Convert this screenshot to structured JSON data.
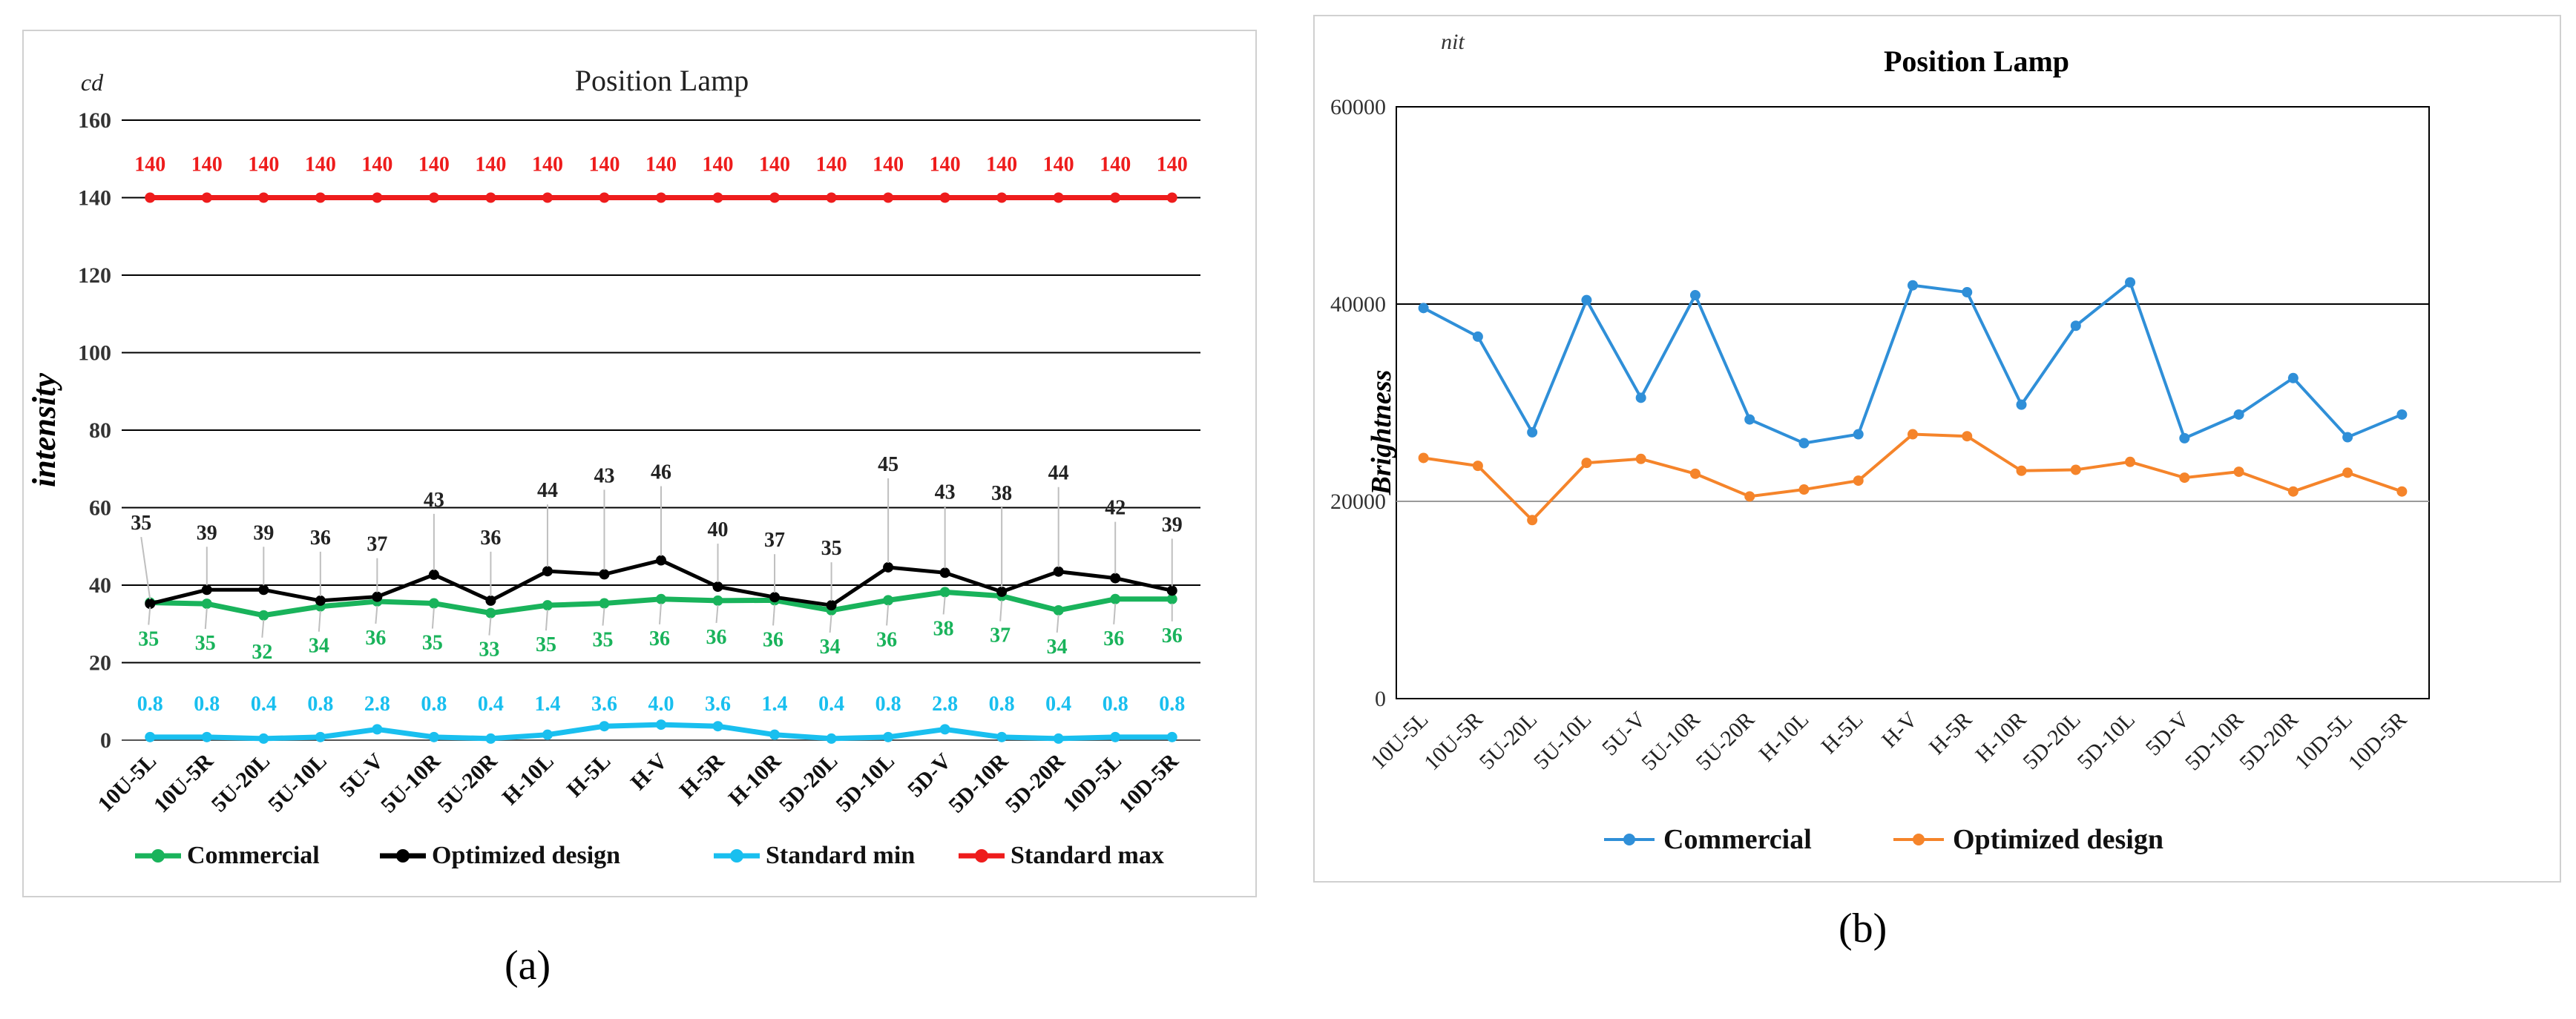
{
  "figure": {
    "label_a": "(a)",
    "label_b": "(b)"
  },
  "colors": {
    "commercial_a": "#19b35b",
    "optimized_a": "#000000",
    "standard_min": "#19bfef",
    "standard_max": "#ee1c1c",
    "commercial_b": "#2f8fd8",
    "optimized_b": "#f5842a"
  },
  "chart_data": [
    {
      "type": "line",
      "title": "Position Lamp",
      "unit_label": "cd",
      "ylabel": "intensity",
      "xlabel": "",
      "ylim": [
        0,
        160
      ],
      "yticks": [
        0,
        20,
        40,
        60,
        80,
        100,
        120,
        140,
        160
      ],
      "legend_position": "bottom",
      "categories": [
        "10U-5L",
        "10U-5R",
        "5U-20L",
        "5U-10L",
        "5U-V",
        "5U-10R",
        "5U-20R",
        "H-10L",
        "H-5L",
        "H-V",
        "H-5R",
        "H-10R",
        "5D-20L",
        "5D-10L",
        "5D-V",
        "5D-10R",
        "5D-20R",
        "10D-5L",
        "10D-5R"
      ],
      "series": [
        {
          "name": "Commercial",
          "values": [
            35.5,
            35.2,
            32.2,
            34.5,
            35.8,
            35.3,
            32.8,
            34.8,
            35.3,
            36.4,
            36.0,
            36.1,
            33.5,
            36.1,
            38.2,
            37.2,
            33.5,
            36.4,
            36.4
          ],
          "labels": [
            "35",
            "35",
            "32",
            "34",
            "36",
            "35",
            "33",
            "35",
            "35",
            "36",
            "36",
            "36",
            "34",
            "36",
            "38",
            "37",
            "34",
            "36",
            "36"
          ]
        },
        {
          "name": "Optimized design",
          "values": [
            35.2,
            38.8,
            38.8,
            36.0,
            37.0,
            42.7,
            36.0,
            43.6,
            42.8,
            46.4,
            39.6,
            36.9,
            34.8,
            44.6,
            43.2,
            38.3,
            43.5,
            41.8,
            38.6
          ],
          "labels": [
            "35",
            "39",
            "39",
            "36",
            "37",
            "43",
            "36",
            "44",
            "43",
            "46",
            "40",
            "37",
            "35",
            "45",
            "43",
            "38",
            "44",
            "42",
            "39"
          ]
        },
        {
          "name": "Standard min",
          "values": [
            0.8,
            0.8,
            0.4,
            0.8,
            2.8,
            0.8,
            0.4,
            1.4,
            3.6,
            4.0,
            3.6,
            1.4,
            0.4,
            0.8,
            2.8,
            0.8,
            0.4,
            0.8,
            0.8
          ],
          "labels": [
            "0.8",
            "0.8",
            "0.4",
            "0.8",
            "2.8",
            "0.8",
            "0.4",
            "1.4",
            "3.6",
            "4.0",
            "3.6",
            "1.4",
            "0.4",
            "0.8",
            "2.8",
            "0.8",
            "0.4",
            "0.8",
            "0.8"
          ]
        },
        {
          "name": "Standard max",
          "values": [
            140,
            140,
            140,
            140,
            140,
            140,
            140,
            140,
            140,
            140,
            140,
            140,
            140,
            140,
            140,
            140,
            140,
            140,
            140
          ],
          "labels": [
            "140",
            "140",
            "140",
            "140",
            "140",
            "140",
            "140",
            "140",
            "140",
            "140",
            "140",
            "140",
            "140",
            "140",
            "140",
            "140",
            "140",
            "140",
            "140"
          ]
        }
      ]
    },
    {
      "type": "line",
      "title": "Position Lamp",
      "unit_label": "nit",
      "ylabel": "Brightness",
      "xlabel": "",
      "ylim": [
        0,
        60000
      ],
      "yticks": [
        0,
        20000,
        40000,
        60000
      ],
      "legend_position": "bottom",
      "categories": [
        "10U-5L",
        "10U-5R",
        "5U-20L",
        "5U-10L",
        "5U-V",
        "5U-10R",
        "5U-20R",
        "H-10L",
        "H-5L",
        "H-V",
        "H-5R",
        "H-10R",
        "5D-20L",
        "5D-10L",
        "5D-V",
        "5D-10R",
        "5D-20R",
        "10D-5L",
        "10D-5R"
      ],
      "series": [
        {
          "name": "Commercial",
          "values": [
            39600,
            36700,
            27000,
            40400,
            30500,
            40900,
            28300,
            25900,
            26800,
            41900,
            41200,
            29800,
            37800,
            42200,
            26400,
            28800,
            32500,
            26500,
            28800
          ]
        },
        {
          "name": "Optimized design",
          "values": [
            24400,
            23600,
            18100,
            23900,
            24300,
            22800,
            20500,
            21200,
            22100,
            26800,
            26600,
            23100,
            23200,
            24000,
            22400,
            23000,
            21000,
            22900,
            21000
          ]
        }
      ]
    }
  ]
}
